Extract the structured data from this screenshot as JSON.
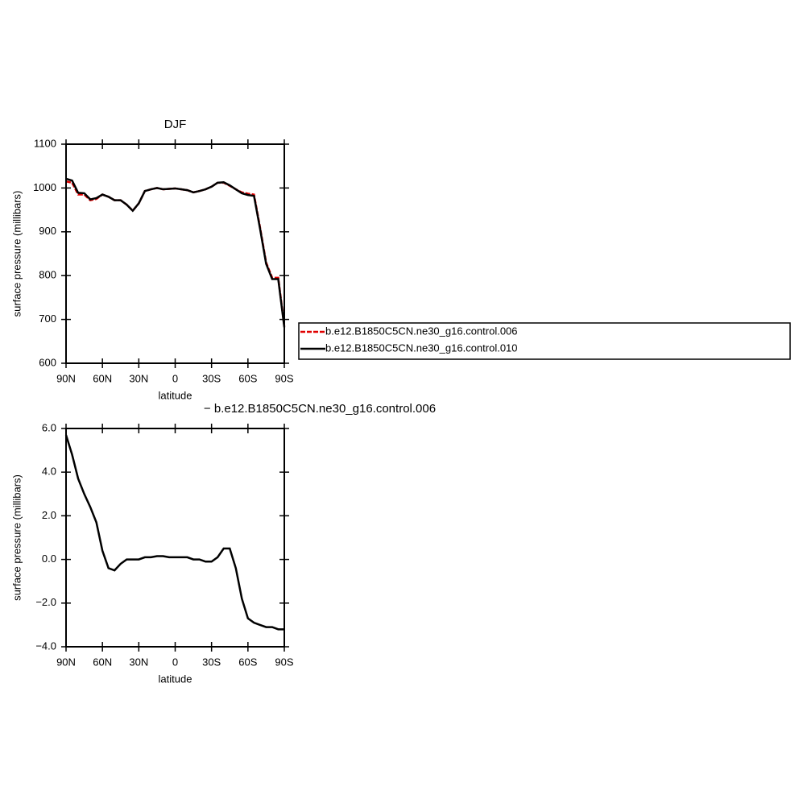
{
  "chart_data": [
    {
      "type": "line",
      "title": "DJF",
      "xlabel": "latitude",
      "ylabel": "surface pressure (millibars)",
      "x": [
        90,
        85,
        80,
        75,
        70,
        65,
        60,
        55,
        50,
        45,
        40,
        35,
        30,
        25,
        20,
        15,
        10,
        5,
        0,
        -5,
        -10,
        -15,
        -20,
        -25,
        -30,
        -35,
        -40,
        -45,
        -50,
        -55,
        -60,
        -65,
        -70,
        -75,
        -80,
        -85,
        -90
      ],
      "series": [
        {
          "name": "b.e12.B1850C5CN.ne30_g16.control.006",
          "color": "#e00000",
          "line_style": "dashed",
          "values": [
            1015,
            1012,
            985,
            985,
            972,
            975,
            985,
            980,
            972,
            972,
            962,
            948,
            965,
            993,
            997,
            1000,
            997,
            998,
            999,
            997,
            995,
            990,
            993,
            997,
            1003,
            1012,
            1012,
            1005,
            997,
            990,
            987,
            985,
            910,
            830,
            795,
            795,
            685
          ]
        },
        {
          "name": "b.e12.B1850C5CN.ne30_g16.control.010",
          "color": "#000000",
          "line_style": "solid",
          "values": [
            1021,
            1017,
            989,
            988,
            974,
            977,
            985,
            980,
            972,
            972,
            962,
            948,
            965,
            993,
            997,
            1000,
            997,
            998,
            999,
            997,
            995,
            990,
            993,
            997,
            1003,
            1012,
            1013,
            1006,
            997,
            988,
            984,
            982,
            907,
            827,
            792,
            792,
            682
          ]
        }
      ],
      "xlim": [
        90,
        -90
      ],
      "xticks": [
        {
          "value": 90,
          "label": "90N"
        },
        {
          "value": 60,
          "label": "60N"
        },
        {
          "value": 30,
          "label": "30N"
        },
        0,
        {
          "value": -30,
          "label": "30S"
        },
        {
          "value": -60,
          "label": "60S"
        },
        {
          "value": -90,
          "label": "90S"
        }
      ],
      "ylim": [
        600,
        1100
      ],
      "yticks": [
        600,
        700,
        800,
        900,
        1000,
        1100
      ],
      "legend": "right"
    },
    {
      "type": "line",
      "title": "− b.e12.B1850C5CN.ne30_g16.control.006",
      "xlabel": "latitude",
      "ylabel": "surface pressure (millibars)",
      "x": [
        90,
        85,
        80,
        75,
        70,
        65,
        60,
        55,
        50,
        45,
        40,
        35,
        30,
        25,
        20,
        15,
        10,
        5,
        0,
        -5,
        -10,
        -15,
        -20,
        -25,
        -30,
        -35,
        -40,
        -45,
        -50,
        -55,
        -60,
        -65,
        -70,
        -75,
        -80,
        -85,
        -90
      ],
      "values": [
        5.7,
        4.8,
        3.7,
        3.0,
        2.4,
        1.7,
        0.4,
        -0.4,
        -0.5,
        -0.2,
        0,
        0,
        0,
        0.1,
        0.1,
        0.15,
        0.15,
        0.1,
        0.1,
        0.1,
        0.1,
        0,
        0,
        -0.1,
        -0.1,
        0.1,
        0.5,
        0.5,
        -0.4,
        -1.8,
        -2.7,
        -2.9,
        -3.0,
        -3.1,
        -3.1,
        -3.2,
        -3.2
      ],
      "color": "#000000",
      "xlim": [
        90,
        -90
      ],
      "xticks": [
        {
          "value": 90,
          "label": "90N"
        },
        {
          "value": 60,
          "label": "60N"
        },
        {
          "value": 30,
          "label": "30N"
        },
        0,
        {
          "value": -30,
          "label": "30S"
        },
        {
          "value": -60,
          "label": "60S"
        },
        {
          "value": -90,
          "label": "90S"
        }
      ],
      "ylim": [
        -4,
        6
      ],
      "yticks": [
        {
          "value": -4,
          "label": "−4.0"
        },
        {
          "value": -2,
          "label": "−2.0"
        },
        {
          "value": 0,
          "label": "0.0"
        },
        {
          "value": 2,
          "label": "2.0"
        },
        {
          "value": 4,
          "label": "4.0"
        },
        {
          "value": 6,
          "label": "6.0"
        }
      ]
    }
  ]
}
